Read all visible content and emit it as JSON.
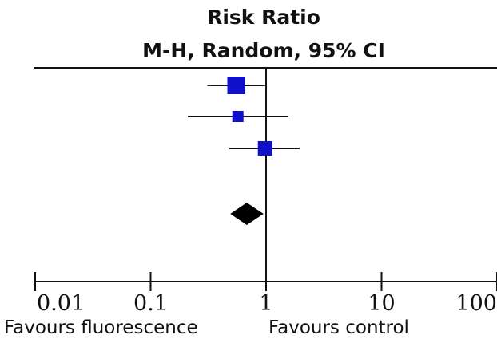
{
  "chart_data": {
    "type": "scatter",
    "title": "Risk Ratio",
    "subtitle": "M-H, Random, 95% CI",
    "x_scale": "log",
    "xlim": [
      0.01,
      100
    ],
    "null_line": 1,
    "ticks": [
      {
        "value": 0.01,
        "label": "0.01"
      },
      {
        "value": 0.1,
        "label": "0.1"
      },
      {
        "value": 1,
        "label": "1"
      },
      {
        "value": 10,
        "label": "10"
      },
      {
        "value": 100,
        "label": "100"
      }
    ],
    "studies": [
      {
        "rr": 0.55,
        "ci_low": 0.31,
        "ci_high": 0.98,
        "weight": 3
      },
      {
        "rr": 0.57,
        "ci_low": 0.21,
        "ci_high": 1.55,
        "weight": 1
      },
      {
        "rr": 0.98,
        "ci_low": 0.48,
        "ci_high": 1.95,
        "weight": 2
      }
    ],
    "pooled": {
      "rr": 0.68,
      "ci_low": 0.49,
      "ci_high": 0.95
    },
    "favours_left": "Favours fluorescence",
    "favours_right": "Favours control",
    "colors": {
      "study_marker": "#1010c8",
      "pooled_marker": "#000000",
      "lines": "#111111"
    }
  }
}
